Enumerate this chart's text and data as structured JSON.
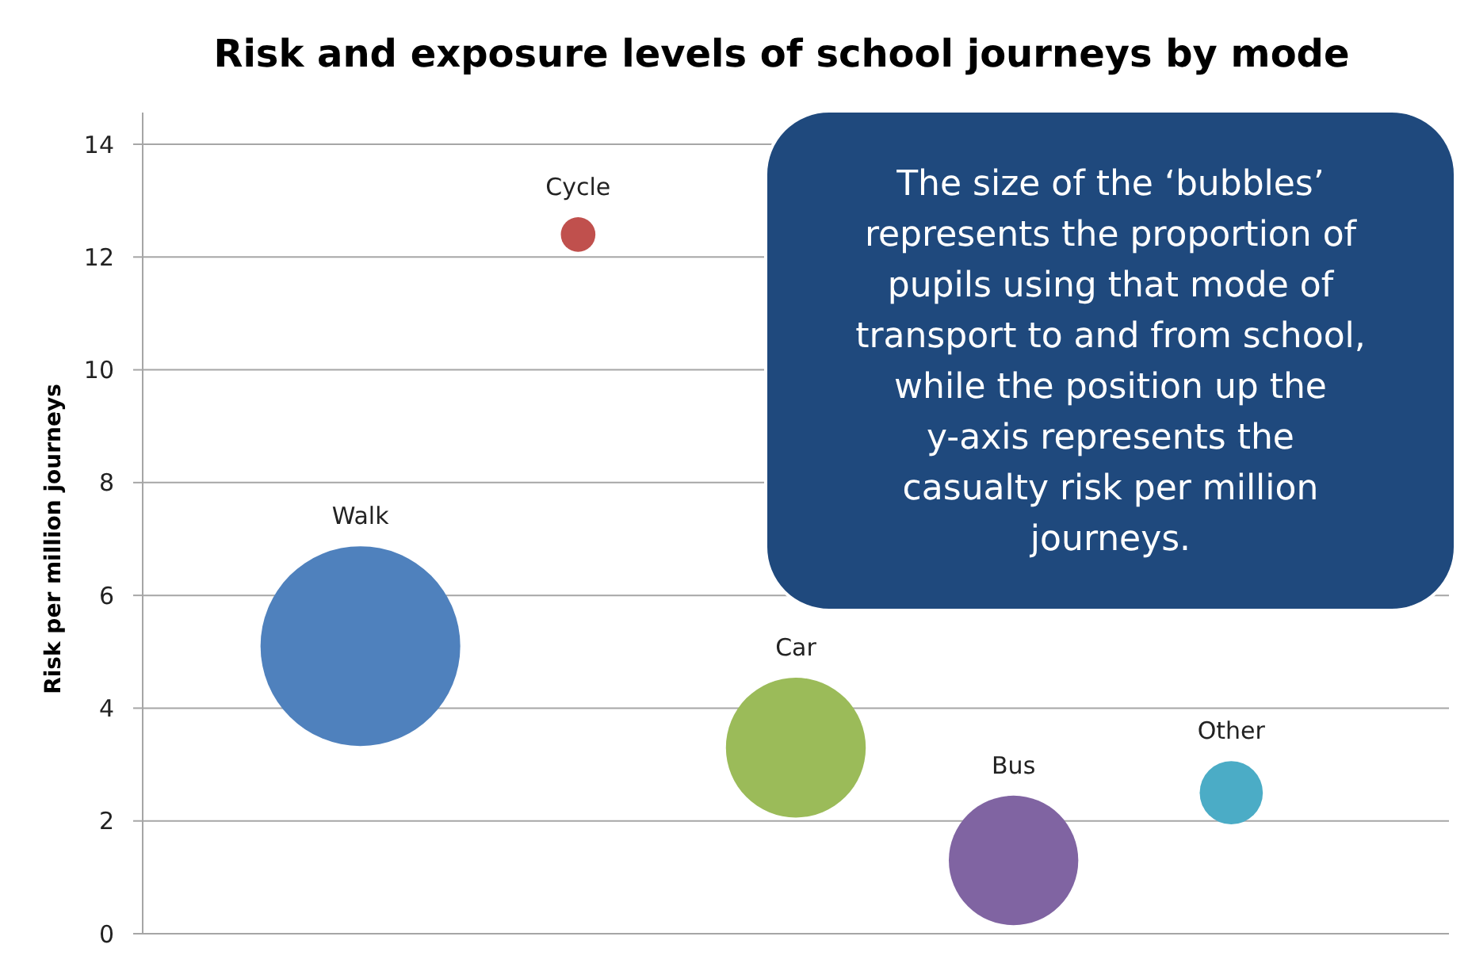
{
  "chart_data": {
    "type": "bubble",
    "title": "Risk and exposure levels of school journeys by mode",
    "ylabel": "Risk per million journeys",
    "categories": [
      null,
      null,
      null,
      null,
      null
    ],
    "series": [
      {
        "name": "Walk",
        "color": "#4f81bd",
        "values": [
          5.1,
          null,
          null,
          null,
          null
        ],
        "sizes": [
          1,
          null,
          null,
          null,
          null
        ]
      },
      {
        "name": "Cycle",
        "color": "#c0504d",
        "values": [
          null,
          12.4,
          null,
          null,
          null
        ],
        "sizes": [
          null,
          0.03,
          null,
          null,
          null
        ]
      },
      {
        "name": "Car",
        "color": "#9bbb59",
        "values": [
          null,
          null,
          3.3,
          null,
          null
        ],
        "sizes": [
          null,
          null,
          0.49,
          null,
          null
        ]
      },
      {
        "name": "Bus",
        "color": "#8064a2",
        "values": [
          null,
          null,
          null,
          1.3,
          null
        ],
        "sizes": [
          null,
          null,
          null,
          0.42,
          null
        ]
      },
      {
        "name": "Other",
        "color": "#4bacc6",
        "values": [
          null,
          null,
          null,
          null,
          2.5
        ],
        "sizes": [
          null,
          null,
          null,
          null,
          0.1
        ]
      }
    ],
    "ylim": [
      0,
      14
    ],
    "yticks": [
      0,
      2,
      4,
      6,
      8,
      10,
      12,
      14
    ],
    "grid": "y",
    "annotations": [
      "The size of the ‘bubbles’ represents the proportion of pupils using that mode of transport to and from school, while the position up the y-axis represents the casualty risk per million journeys."
    ]
  }
}
